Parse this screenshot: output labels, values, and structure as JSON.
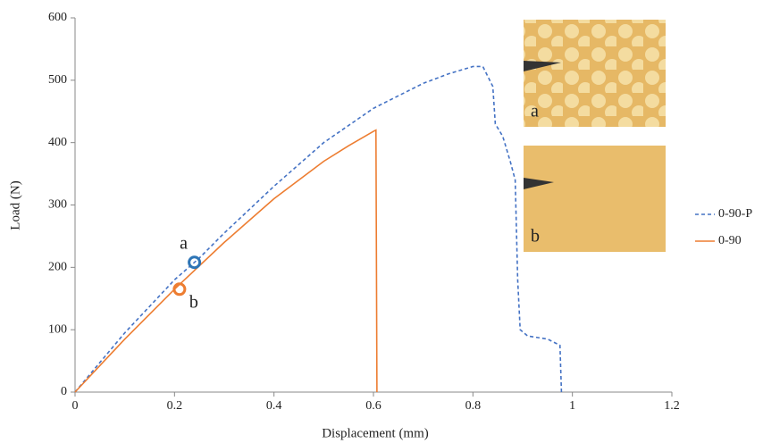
{
  "chart_data": {
    "type": "line",
    "xlabel": "Displacement (mm)",
    "ylabel": "Load (N)",
    "xlim": [
      0,
      1.2
    ],
    "xticks": [
      0,
      0.2,
      0.4,
      0.6,
      0.8,
      1,
      1.2
    ],
    "ylim": [
      0,
      600
    ],
    "yticks": [
      0,
      100,
      200,
      300,
      400,
      500,
      600
    ],
    "grid": false,
    "legend": "right",
    "series": [
      {
        "name": "0-90-P",
        "color": "#4472c4",
        "dash": true,
        "x": [
          0,
          0.1,
          0.2,
          0.25,
          0.3,
          0.4,
          0.5,
          0.6,
          0.7,
          0.75,
          0.8,
          0.82,
          0.84,
          0.845,
          0.86,
          0.875,
          0.885,
          0.89,
          0.895,
          0.91,
          0.95,
          0.975,
          0.978
        ],
        "values": [
          0,
          95,
          180,
          215,
          255,
          330,
          400,
          455,
          495,
          510,
          522,
          522,
          490,
          430,
          410,
          370,
          340,
          180,
          100,
          90,
          85,
          75,
          0
        ]
      },
      {
        "name": "0-90",
        "color": "#ed7d31",
        "dash": false,
        "x": [
          0,
          0.1,
          0.2,
          0.3,
          0.4,
          0.5,
          0.55,
          0.6,
          0.605,
          0.607
        ],
        "values": [
          0,
          85,
          165,
          240,
          310,
          370,
          395,
          418,
          420,
          0
        ]
      }
    ],
    "markers": [
      {
        "label": "a",
        "x": 0.24,
        "y": 208,
        "color": "#2e75b6"
      },
      {
        "label": "b",
        "x": 0.21,
        "y": 165,
        "color": "#ed7d31"
      }
    ],
    "inset_labels": [
      "a",
      "b"
    ]
  }
}
